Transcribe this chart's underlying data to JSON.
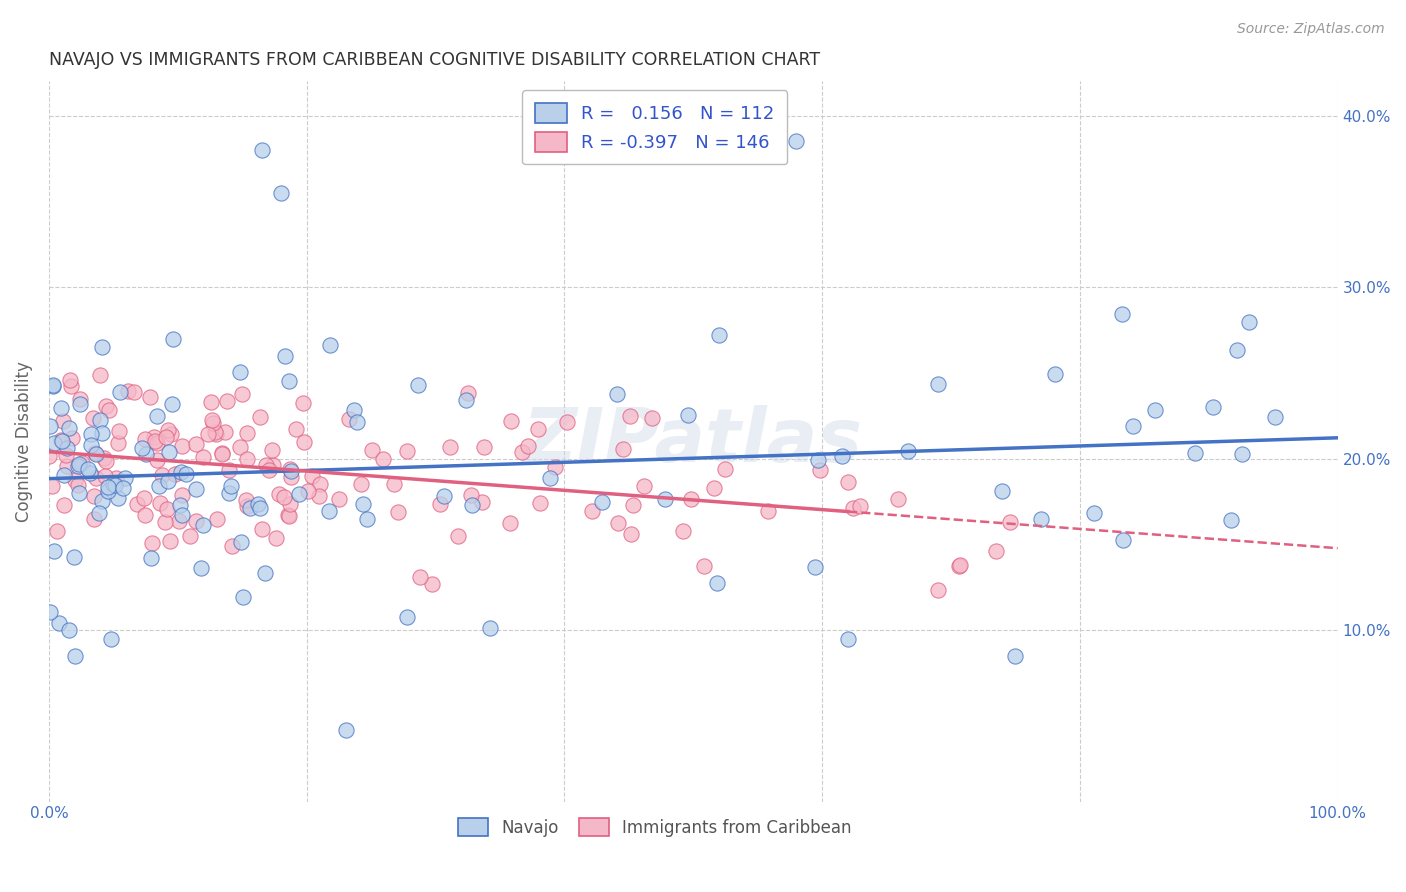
{
  "title": "NAVAJO VS IMMIGRANTS FROM CARIBBEAN COGNITIVE DISABILITY CORRELATION CHART",
  "source": "Source: ZipAtlas.com",
  "ylabel": "Cognitive Disability",
  "navajo_R": 0.156,
  "navajo_N": 112,
  "carib_R": -0.397,
  "carib_N": 146,
  "navajo_color": "#b8d0ea",
  "carib_color": "#f5b8c8",
  "navajo_line_color": "#4472c4",
  "carib_line_color": "#e06080",
  "background_color": "#ffffff",
  "grid_color": "#cccccc",
  "title_color": "#333333",
  "legend_text_color": "#3355cc",
  "axis_tick_color": "#4472c4",
  "xlim": [
    0.0,
    1.0
  ],
  "ylim": [
    0.0,
    0.42
  ],
  "xticks": [
    0.0,
    0.2,
    0.4,
    0.6,
    0.8,
    1.0
  ],
  "yticks": [
    0.1,
    0.2,
    0.3,
    0.4
  ],
  "xticklabels": [
    "0.0%",
    "",
    "",
    "",
    "",
    "100.0%"
  ],
  "yticklabels_right": [
    "10.0%",
    "20.0%",
    "30.0%",
    "40.0%"
  ]
}
